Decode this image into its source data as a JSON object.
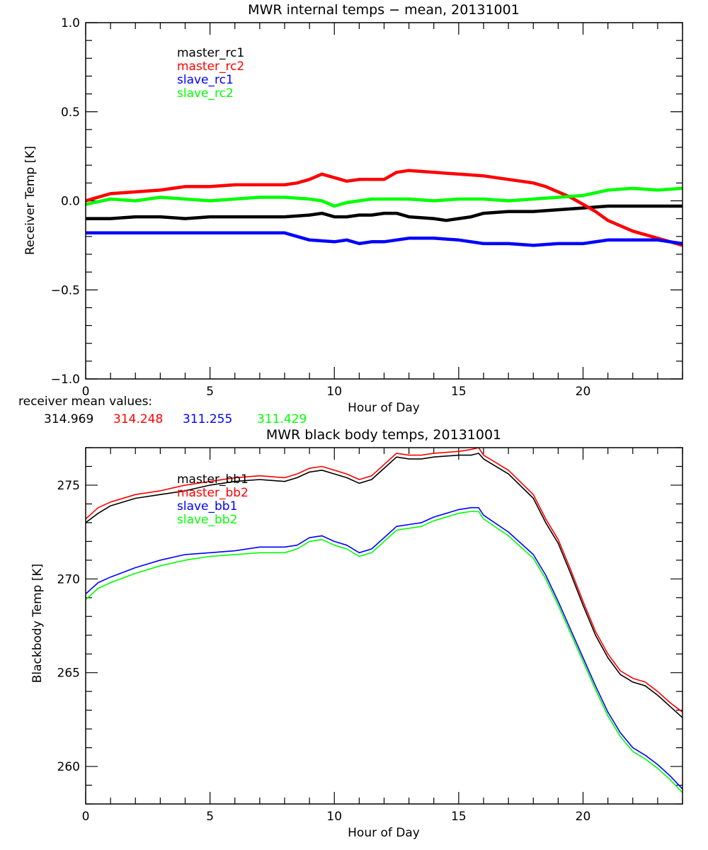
{
  "chart_data": [
    {
      "type": "line",
      "title": "MWR internal temps − mean, 20131001",
      "xlabel": "Hour of Day",
      "ylabel": "Receiver Temp [K]",
      "xlim": [
        0,
        24
      ],
      "ylim": [
        -1.0,
        1.0
      ],
      "xticks": [
        0,
        5,
        10,
        15,
        20
      ],
      "xtick_labels": [
        "0",
        "5",
        "10",
        "15",
        "20"
      ],
      "yticks": [
        -1.0,
        -0.5,
        0.0,
        0.5,
        1.0
      ],
      "ytick_labels": [
        "−1.0",
        "−0.5",
        "0.0",
        "0.5",
        "1.0"
      ],
      "x_minor_step": 1,
      "y_minor_step": 0.1,
      "grid": false,
      "legend_position": "top-left",
      "series": [
        {
          "name": "master_rc1",
          "color": "#000000",
          "x": [
            0,
            1,
            2,
            3,
            4,
            5,
            6,
            7,
            8,
            9,
            9.5,
            10,
            10.5,
            11,
            11.5,
            12,
            12.5,
            13,
            14,
            14.5,
            15,
            15.5,
            16,
            17,
            18,
            19,
            20,
            21,
            22,
            23,
            24
          ],
          "y": [
            -0.1,
            -0.1,
            -0.09,
            -0.09,
            -0.1,
            -0.09,
            -0.09,
            -0.09,
            -0.09,
            -0.08,
            -0.07,
            -0.09,
            -0.09,
            -0.08,
            -0.08,
            -0.07,
            -0.07,
            -0.09,
            -0.1,
            -0.11,
            -0.1,
            -0.09,
            -0.07,
            -0.06,
            -0.06,
            -0.05,
            -0.04,
            -0.03,
            -0.03,
            -0.03,
            -0.03
          ]
        },
        {
          "name": "master_rc2",
          "color": "#ff0000",
          "x": [
            0,
            1,
            2,
            3,
            4,
            5,
            6,
            7,
            8,
            8.5,
            9,
            9.5,
            10,
            10.5,
            11,
            11.5,
            12,
            12.5,
            13,
            14,
            15,
            16,
            17,
            18,
            18.5,
            19,
            19.5,
            20,
            20.5,
            21,
            22,
            23,
            24
          ],
          "y": [
            0.0,
            0.04,
            0.05,
            0.06,
            0.08,
            0.08,
            0.09,
            0.09,
            0.09,
            0.1,
            0.12,
            0.15,
            0.13,
            0.11,
            0.12,
            0.12,
            0.12,
            0.16,
            0.17,
            0.16,
            0.15,
            0.14,
            0.12,
            0.1,
            0.08,
            0.05,
            0.02,
            -0.02,
            -0.06,
            -0.11,
            -0.17,
            -0.21,
            -0.25
          ]
        },
        {
          "name": "slave_rc1",
          "color": "#0000ff",
          "x": [
            0,
            1,
            2,
            3,
            4,
            5,
            6,
            7,
            8,
            8.5,
            9,
            10,
            10.5,
            11,
            11.5,
            12,
            12.5,
            13,
            14,
            15,
            16,
            17,
            18,
            19,
            20,
            21,
            22,
            23,
            24
          ],
          "y": [
            -0.18,
            -0.18,
            -0.18,
            -0.18,
            -0.18,
            -0.18,
            -0.18,
            -0.18,
            -0.18,
            -0.2,
            -0.22,
            -0.23,
            -0.22,
            -0.24,
            -0.23,
            -0.23,
            -0.22,
            -0.21,
            -0.21,
            -0.22,
            -0.24,
            -0.24,
            -0.25,
            -0.24,
            -0.24,
            -0.22,
            -0.22,
            -0.22,
            -0.24
          ]
        },
        {
          "name": "slave_rc2",
          "color": "#00ff00",
          "x": [
            0,
            1,
            2,
            3,
            4,
            5,
            6,
            7,
            8,
            9,
            9.5,
            10,
            10.5,
            11,
            11.5,
            12,
            13,
            14,
            15,
            16,
            17,
            18,
            19,
            20,
            21,
            22,
            23,
            24
          ],
          "y": [
            -0.02,
            0.01,
            0.0,
            0.02,
            0.01,
            0.0,
            0.01,
            0.02,
            0.02,
            0.01,
            0.0,
            -0.03,
            -0.01,
            0.0,
            0.01,
            0.01,
            0.01,
            0.0,
            0.01,
            0.01,
            0.0,
            0.01,
            0.02,
            0.03,
            0.06,
            0.07,
            0.06,
            0.07
          ]
        }
      ],
      "annotations": {
        "caption_label": "receiver mean values:",
        "mean_values": [
          {
            "series": "master_rc1",
            "value": "314.969",
            "color": "#000000"
          },
          {
            "series": "master_rc2",
            "value": "314.248",
            "color": "#ff0000"
          },
          {
            "series": "slave_rc1",
            "value": "311.255",
            "color": "#0000ff"
          },
          {
            "series": "slave_rc2",
            "value": "311.429",
            "color": "#00ff00"
          }
        ]
      }
    },
    {
      "type": "line",
      "title": "MWR black body temps, 20131001",
      "xlabel": "Hour of Day",
      "ylabel": "Blackbody Temp [K]",
      "xlim": [
        0,
        24
      ],
      "ylim": [
        258,
        277
      ],
      "xticks": [
        0,
        5,
        10,
        15,
        20
      ],
      "xtick_labels": [
        "0",
        "5",
        "10",
        "15",
        "20"
      ],
      "yticks": [
        260,
        265,
        270,
        275
      ],
      "ytick_labels": [
        "260",
        "265",
        "270",
        "275"
      ],
      "x_minor_step": 1,
      "y_minor_step": 1,
      "grid": false,
      "legend_position": "top-left",
      "series": [
        {
          "name": "master_bb1",
          "color": "#000000",
          "x": [
            0,
            0.5,
            1,
            2,
            3,
            4,
            5,
            6,
            7,
            8,
            8.5,
            9,
            9.5,
            10,
            10.5,
            11,
            11.5,
            12,
            12.5,
            13,
            13.5,
            14,
            15,
            15.5,
            15.8,
            16,
            17,
            18,
            18.5,
            19,
            19.5,
            20,
            20.5,
            21,
            21.5,
            22,
            22.5,
            23,
            23.5,
            24
          ],
          "y": [
            273.0,
            273.5,
            273.9,
            274.3,
            274.5,
            274.7,
            275.0,
            275.2,
            275.3,
            275.2,
            275.4,
            275.7,
            275.8,
            275.6,
            275.4,
            275.1,
            275.3,
            275.9,
            276.5,
            276.4,
            276.4,
            276.5,
            276.6,
            276.6,
            276.7,
            276.4,
            275.6,
            274.3,
            273.0,
            271.9,
            270.3,
            268.6,
            267.0,
            265.8,
            264.9,
            264.5,
            264.3,
            263.8,
            263.2,
            262.6
          ]
        },
        {
          "name": "master_bb2",
          "color": "#ff0000",
          "x": [
            0,
            0.5,
            1,
            2,
            3,
            4,
            5,
            6,
            7,
            8,
            8.5,
            9,
            9.5,
            10,
            10.5,
            11,
            11.5,
            12,
            12.5,
            13,
            13.5,
            14,
            15,
            15.5,
            15.8,
            16,
            17,
            18,
            18.5,
            19,
            19.5,
            20,
            20.5,
            21,
            21.5,
            22,
            22.5,
            23,
            23.5,
            24
          ],
          "y": [
            273.2,
            273.8,
            274.1,
            274.5,
            274.7,
            275.0,
            275.2,
            275.4,
            275.5,
            275.4,
            275.6,
            275.9,
            276.0,
            275.8,
            275.6,
            275.3,
            275.5,
            276.1,
            276.7,
            276.6,
            276.6,
            276.7,
            276.8,
            276.9,
            277.0,
            276.6,
            275.8,
            274.5,
            273.2,
            272.1,
            270.5,
            268.8,
            267.2,
            266.0,
            265.1,
            264.7,
            264.5,
            264.0,
            263.4,
            262.9
          ]
        },
        {
          "name": "slave_bb1",
          "color": "#0000ff",
          "x": [
            0,
            0.5,
            1,
            2,
            3,
            4,
            5,
            6,
            7,
            8,
            8.5,
            9,
            9.5,
            10,
            10.5,
            11,
            11.5,
            12,
            12.5,
            13,
            13.5,
            14,
            15,
            15.5,
            15.8,
            16,
            17,
            18,
            18.5,
            19,
            19.5,
            20,
            20.5,
            21,
            21.5,
            22,
            22.5,
            23,
            23.5,
            24
          ],
          "y": [
            269.2,
            269.8,
            270.1,
            270.6,
            271.0,
            271.3,
            271.4,
            271.5,
            271.7,
            271.7,
            271.8,
            272.2,
            272.3,
            272.0,
            271.8,
            271.4,
            271.6,
            272.2,
            272.8,
            272.9,
            273.0,
            273.3,
            273.7,
            273.8,
            273.8,
            273.4,
            272.5,
            271.3,
            270.2,
            268.8,
            267.3,
            265.8,
            264.3,
            262.9,
            261.8,
            261.0,
            260.6,
            260.1,
            259.5,
            258.8
          ]
        },
        {
          "name": "slave_bb2",
          "color": "#00ff00",
          "x": [
            0,
            0.5,
            1,
            2,
            3,
            4,
            5,
            6,
            7,
            8,
            8.5,
            9,
            9.5,
            10,
            10.5,
            11,
            11.5,
            12,
            12.5,
            13,
            13.5,
            14,
            15,
            15.5,
            15.8,
            16,
            17,
            18,
            18.5,
            19,
            19.5,
            20,
            20.5,
            21,
            21.5,
            22,
            22.5,
            23,
            23.5,
            24
          ],
          "y": [
            268.9,
            269.5,
            269.8,
            270.3,
            270.7,
            271.0,
            271.2,
            271.3,
            271.4,
            271.4,
            271.6,
            272.0,
            272.1,
            271.8,
            271.6,
            271.2,
            271.4,
            272.0,
            272.6,
            272.7,
            272.8,
            273.1,
            273.5,
            273.6,
            273.6,
            273.2,
            272.3,
            271.1,
            270.0,
            268.6,
            267.1,
            265.6,
            264.1,
            262.7,
            261.6,
            260.8,
            260.4,
            259.9,
            259.3,
            258.6
          ]
        }
      ]
    }
  ]
}
